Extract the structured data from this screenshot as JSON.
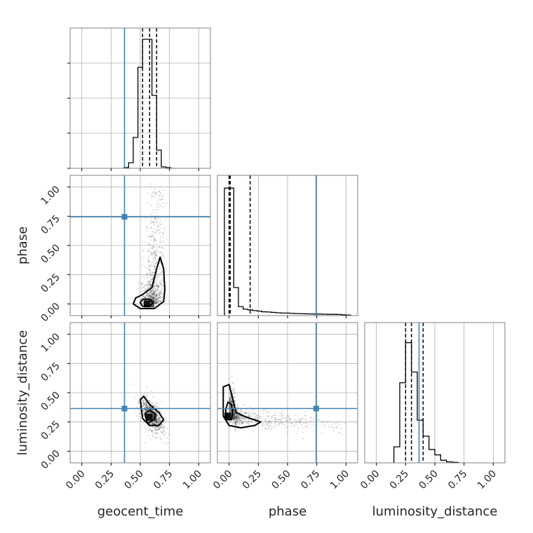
{
  "chart_data": {
    "type": "corner",
    "parameters": [
      "geocent_time",
      "phase",
      "luminosity_distance"
    ],
    "range": [
      -0.1,
      1.1
    ],
    "ticks": [
      0.0,
      0.25,
      0.5,
      0.75,
      1.0
    ],
    "tick_labels": [
      "0.00",
      "0.25",
      "0.50",
      "0.75",
      "1.00"
    ],
    "grid": true,
    "colors": {
      "truth": "#4682b4",
      "hist": "#000000",
      "grid": "#b0b0b0",
      "frame": "#808080"
    },
    "truths": {
      "geocent_time": 0.365,
      "phase": 0.745,
      "luminosity_distance": 0.365
    },
    "quantiles": {
      "geocent_time": [
        0.52,
        0.58,
        0.64
      ],
      "phase": [
        0.0,
        0.01,
        0.18
      ],
      "luminosity_distance": [
        0.25,
        0.3,
        0.4
      ]
    },
    "histograms": {
      "geocent_time": {
        "bin_edges": [
          0.36,
          0.4,
          0.44,
          0.48,
          0.52,
          0.56,
          0.6,
          0.64,
          0.68,
          0.72,
          0.76,
          0.8
        ],
        "counts": [
          0.005,
          0.04,
          0.22,
          0.72,
          0.92,
          0.92,
          0.52,
          0.13,
          0.01,
          0.005,
          0
        ],
        "ylim": [
          0,
          1
        ]
      },
      "phase": {
        "bin_edges": [
          -0.04,
          0.0,
          0.04,
          0.08,
          0.12,
          0.16,
          0.2,
          0.24,
          0.28,
          0.32,
          0.36,
          0.4,
          0.44,
          0.48,
          0.52,
          0.56,
          0.6,
          0.64,
          0.68,
          0.72,
          0.76,
          0.8,
          0.84,
          0.88,
          0.92,
          0.96,
          1.0,
          1.04
        ],
        "counts": [
          1.0,
          1.0,
          0.22,
          0.07,
          0.05,
          0.045,
          0.04,
          0.035,
          0.03,
          0.028,
          0.025,
          0.022,
          0.02,
          0.02,
          0.018,
          0.016,
          0.015,
          0.014,
          0.013,
          0.012,
          0.012,
          0.011,
          0.01,
          0.01,
          0.009,
          0.006,
          0.004
        ],
        "ylim": [
          0,
          1.1
        ]
      },
      "luminosity_distance": {
        "bin_edges": [
          0.15,
          0.2,
          0.25,
          0.3,
          0.35,
          0.4,
          0.45,
          0.5,
          0.55,
          0.6,
          0.65,
          0.7
        ],
        "counts": [
          0.12,
          0.6,
          0.9,
          0.68,
          0.32,
          0.2,
          0.1,
          0.06,
          0.02,
          0.008,
          0.004
        ],
        "ylim": [
          0,
          1.05
        ]
      }
    },
    "pairs": [
      {
        "x": "geocent_time",
        "y": "phase",
        "peak": [
          0.56,
          0.0
        ],
        "contours": [
          [
            [
              0.52,
              -0.02
            ],
            [
              0.58,
              -0.02
            ],
            [
              0.61,
              0.01
            ],
            [
              0.58,
              0.04
            ],
            [
              0.52,
              0.04
            ],
            [
              0.5,
              0.01
            ]
          ],
          [
            [
              0.44,
              0.0
            ],
            [
              0.5,
              -0.04
            ],
            [
              0.62,
              -0.04
            ],
            [
              0.7,
              0.02
            ],
            [
              0.71,
              0.12
            ],
            [
              0.7,
              0.3
            ],
            [
              0.67,
              0.4
            ],
            [
              0.64,
              0.3
            ],
            [
              0.6,
              0.14
            ],
            [
              0.52,
              0.08
            ],
            [
              0.46,
              0.05
            ]
          ]
        ]
      },
      {
        "x": "geocent_time",
        "y": "luminosity_distance",
        "peak": [
          0.58,
          0.29
        ],
        "contours": [
          [
            [
              0.56,
              0.24
            ],
            [
              0.62,
              0.27
            ],
            [
              0.63,
              0.32
            ],
            [
              0.58,
              0.35
            ],
            [
              0.54,
              0.32
            ]
          ],
          [
            [
              0.5,
              0.44
            ],
            [
              0.52,
              0.28
            ],
            [
              0.58,
              0.22
            ],
            [
              0.66,
              0.22
            ],
            [
              0.7,
              0.27
            ],
            [
              0.66,
              0.33
            ],
            [
              0.58,
              0.4
            ],
            [
              0.53,
              0.47
            ]
          ]
        ]
      },
      {
        "x": "phase",
        "y": "luminosity_distance",
        "peak": [
          -0.01,
          0.3
        ],
        "contours": [
          [
            [
              -0.02,
              0.27
            ],
            [
              0.02,
              0.27
            ],
            [
              0.03,
              0.33
            ],
            [
              0.02,
              0.4
            ],
            [
              -0.01,
              0.42
            ],
            [
              -0.03,
              0.35
            ]
          ],
          [
            [
              -0.05,
              0.55
            ],
            [
              -0.05,
              0.3
            ],
            [
              0.0,
              0.22
            ],
            [
              0.1,
              0.2
            ],
            [
              0.22,
              0.22
            ],
            [
              0.27,
              0.25
            ],
            [
              0.15,
              0.29
            ],
            [
              0.06,
              0.33
            ],
            [
              0.03,
              0.45
            ],
            [
              0.0,
              0.57
            ]
          ]
        ]
      }
    ]
  }
}
